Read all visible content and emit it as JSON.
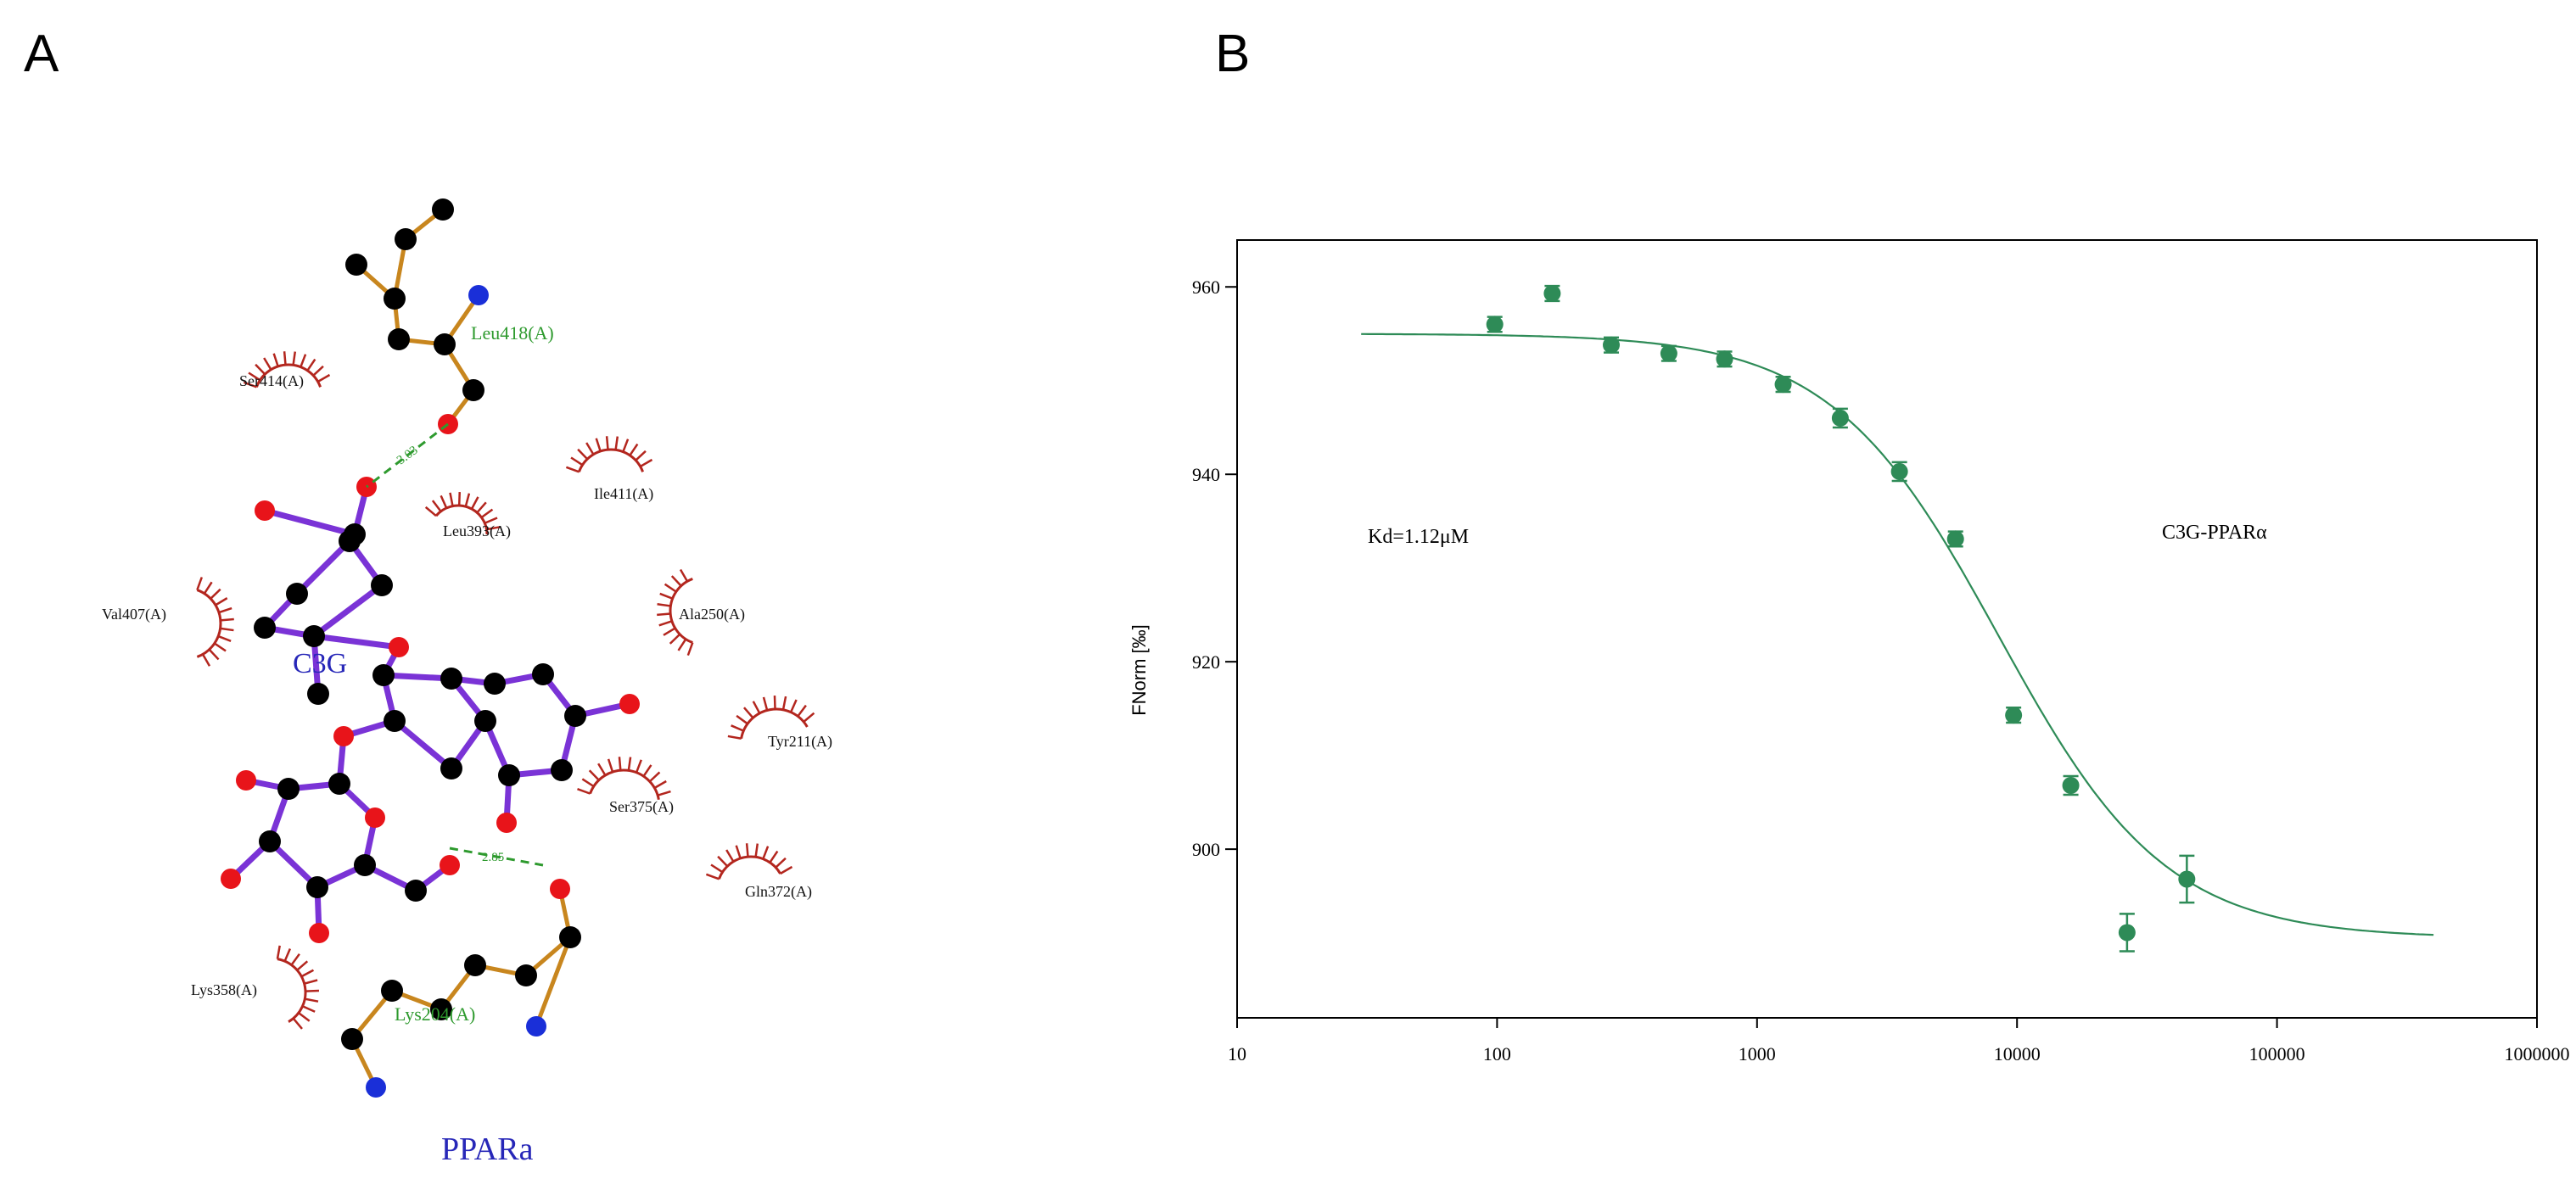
{
  "panels": {
    "a_label": "A",
    "b_label": "B"
  },
  "panel_a": {
    "protein_name": "PPARa",
    "ligand_name": "C3G",
    "hbond_residues": [
      {
        "name": "Leu418(A)",
        "distance": "3.03"
      },
      {
        "name": "Lys204(A)",
        "distance": "2.85"
      }
    ],
    "hydrophobic_residues": [
      {
        "name": "Ser414(A)"
      },
      {
        "name": "Ile411(A)"
      },
      {
        "name": "Leu393(A)"
      },
      {
        "name": "Val407(A)"
      },
      {
        "name": "Ala250(A)"
      },
      {
        "name": "Tyr211(A)"
      },
      {
        "name": "Ser375(A)"
      },
      {
        "name": "Gln372(A)"
      },
      {
        "name": "Lys358(A)"
      }
    ],
    "colors": {
      "ligand_bond": "#7a33d6",
      "residue_bond": "#c8861e",
      "carbon": "#000000",
      "oxygen": "#e8141a",
      "nitrogen": "#1a2fd8",
      "hydrophobic": "#b3261e",
      "hbond_label": "#2e9a2e",
      "name_label": "#2727b8"
    }
  },
  "chart_data": {
    "type": "scatter",
    "title": "",
    "xlabel": "",
    "ylabel": "FNorm [‰]",
    "x_scale": "log",
    "xlim": [
      10,
      1000000
    ],
    "ylim": [
      882,
      965
    ],
    "x_ticks": [
      "10",
      "100",
      "1000",
      "10000",
      "100000",
      "1000000"
    ],
    "y_ticks": [
      900,
      920,
      940,
      960
    ],
    "grid": false,
    "color": "#2e8b57",
    "series": [
      {
        "points": [
          {
            "x": 98,
            "y": 956.0,
            "err": 0.8
          },
          {
            "x": 163,
            "y": 959.3,
            "err": 0.8
          },
          {
            "x": 275,
            "y": 953.8,
            "err": 0.8
          },
          {
            "x": 458,
            "y": 952.9,
            "err": 0.8
          },
          {
            "x": 750,
            "y": 952.3,
            "err": 0.8
          },
          {
            "x": 1260,
            "y": 949.6,
            "err": 0.8
          },
          {
            "x": 2090,
            "y": 946.0,
            "err": 1.0
          },
          {
            "x": 3530,
            "y": 940.3,
            "err": 1.0
          },
          {
            "x": 5800,
            "y": 933.1,
            "err": 0.8
          },
          {
            "x": 9700,
            "y": 914.3,
            "err": 0.8
          },
          {
            "x": 16100,
            "y": 906.8,
            "err": 1.0
          },
          {
            "x": 26500,
            "y": 891.1,
            "err": 2.0
          },
          {
            "x": 45000,
            "y": 896.8,
            "err": 2.5
          }
        ]
      },
      {
        "fit": {
          "x_start": 30,
          "x_end": 400000,
          "top": 955.0,
          "bottom": 890.5,
          "ec50": 8500,
          "hill": 1.35
        }
      }
    ],
    "annotations": [
      "Kd=1.12μM",
      "C3G-PPARα"
    ]
  }
}
